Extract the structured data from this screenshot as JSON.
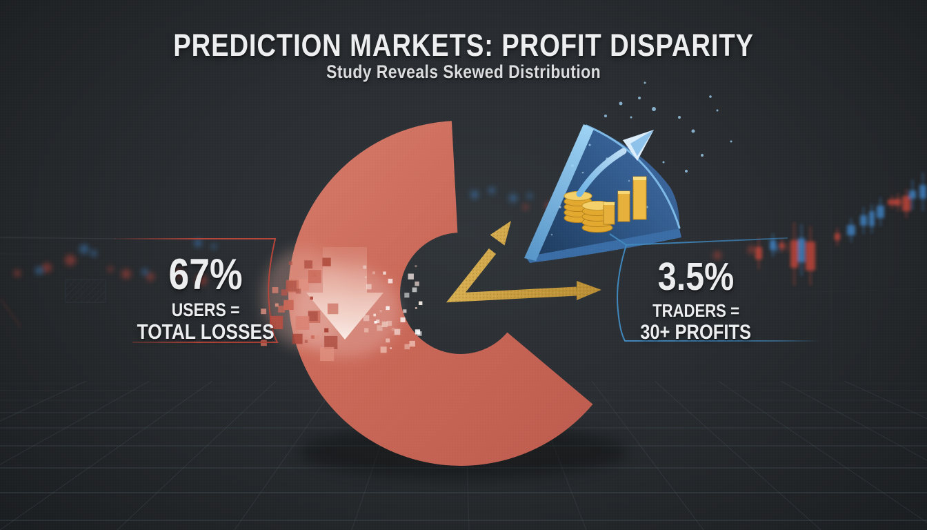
{
  "header": {
    "title": "PREDICTION MARKETS: PROFIT DISPARITY",
    "subtitle": "Study Reveals Skewed Distribution"
  },
  "stats": {
    "losses": {
      "value": "67%",
      "line1": "USERS =",
      "line2": "TOTAL LOSSES",
      "accent_color": "#b5443a"
    },
    "profits": {
      "value": "3.5%",
      "line1": "TRADERS =",
      "line2": "30+ PROFITS",
      "accent_color": "#3f87bd"
    }
  },
  "chart_data": {
    "type": "pie",
    "title": "PREDICTION MARKETS: PROFIT DISPARITY",
    "subtitle": "Study Reveals Skewed Distribution",
    "slices": [
      {
        "label": "USERS = TOTAL LOSSES",
        "value": 67,
        "unit": "%",
        "color": "#c96656",
        "style": "large C-shaped donut segment, gap facing upper-right"
      },
      {
        "label": "TRADERS = 30+ PROFITS",
        "value": 3.5,
        "unit": "%",
        "color": "#2e5686",
        "style": "small exploded 3D wedge with coins, rising bars and growth arrow"
      }
    ],
    "annotations": [
      "dissolving down-arrow inside loss segment (losses evaporating)",
      "gold split arrows from pie center: one up-right to profit wedge, one right to profit stat"
    ],
    "legend_position": "none",
    "background": "dark trading scene with blurred candlesticks and perspective floor grid"
  },
  "icons": {
    "loss_arrow": "pixel-dissolving down arrow",
    "profit_wedge": "3D blue pie wedge",
    "coins": "gold coin stacks",
    "bars": "rising gold bar chart",
    "growth_arrow": "curved up-right arrow",
    "split_arrows": "gold V arrows from center"
  },
  "colors": {
    "background": "#282b2f",
    "loss_segment": "#c96656",
    "profit_wedge_face": "#2e5686",
    "profit_wedge_edge": "#8cc6ee",
    "gold": "#c99f42",
    "red_accent": "#b5443a",
    "blue_accent": "#3f87bd",
    "text": "#ebedef"
  }
}
